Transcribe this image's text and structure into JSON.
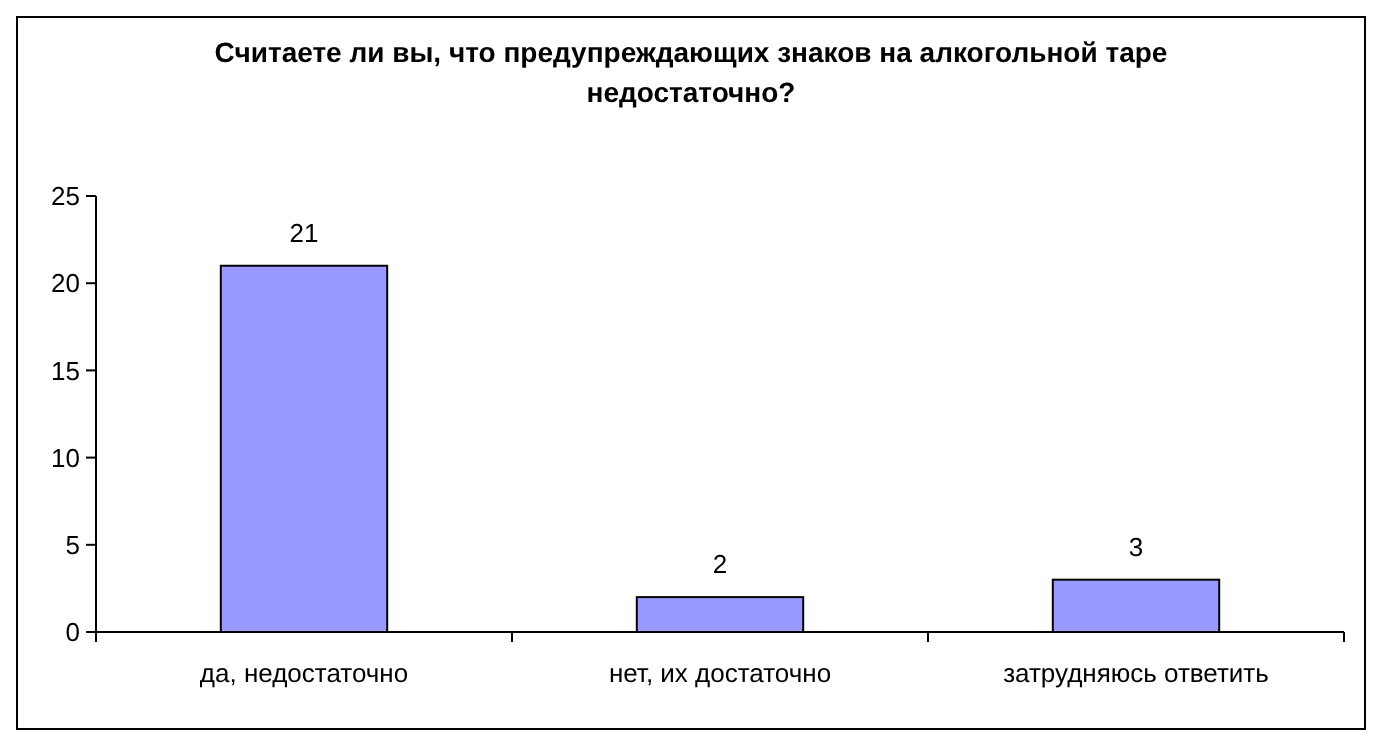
{
  "chart_data": {
    "type": "bar",
    "title": "Считаете ли вы, что предупреждающих знаков на алкогольной таре недостаточно?",
    "categories": [
      "да, недостаточно",
      "нет, их достаточно",
      "затрудняюсь ответить"
    ],
    "values": [
      21,
      2,
      3
    ],
    "color": "#9999ff",
    "ylim": [
      0,
      25
    ],
    "yticks": [
      0,
      5,
      10,
      15,
      20,
      25
    ],
    "data_labels": true
  }
}
